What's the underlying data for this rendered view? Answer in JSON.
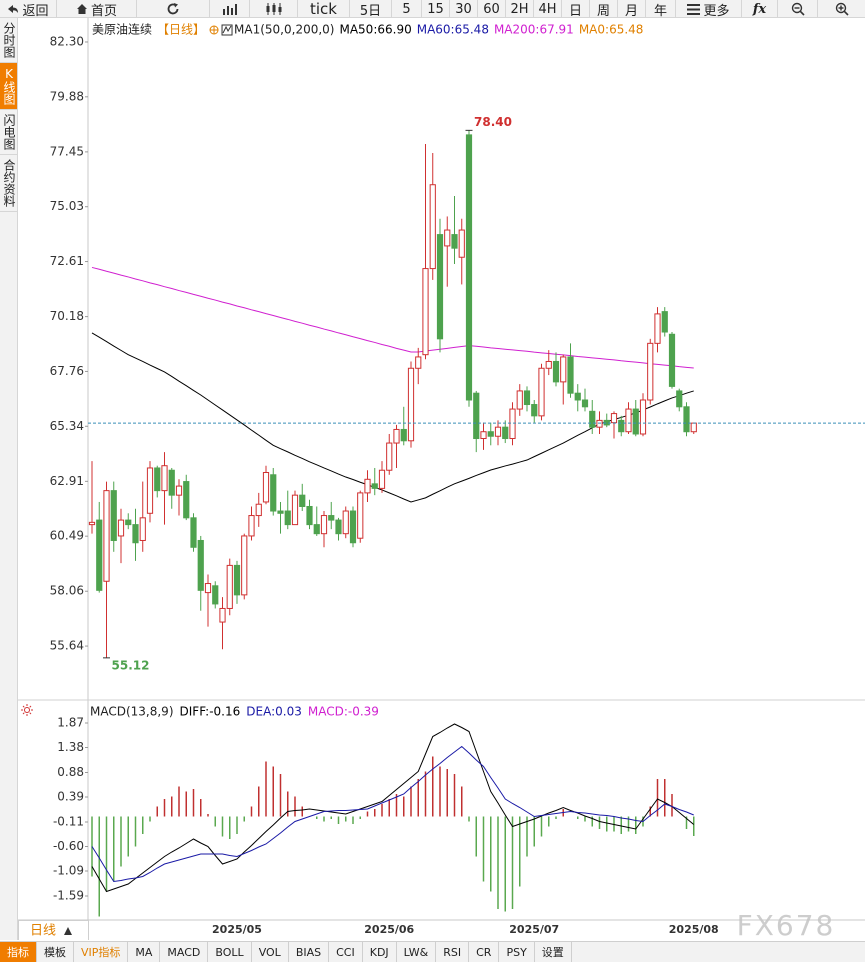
{
  "toolbar": {
    "back": "返回",
    "home": "首页",
    "tick": "tick",
    "periods": [
      "5日",
      "5",
      "15",
      "30",
      "60",
      "2H",
      "4H",
      "日",
      "周",
      "月",
      "年"
    ],
    "more": "更多",
    "fx": "fx"
  },
  "sidebar": {
    "items": [
      "分时图",
      "K线图",
      "闪电图",
      "合约资料"
    ],
    "active": 1
  },
  "period_tab": "日线",
  "bottom_tabs": {
    "items": [
      "指标",
      "模板",
      "VIP指标",
      "MA",
      "MACD",
      "BOLL",
      "VOL",
      "BIAS",
      "CCI",
      "KDJ",
      "LW&",
      "RSI",
      "CR",
      "PSY",
      "设置"
    ],
    "active": 0,
    "vip": 2
  },
  "watermark": "FX678",
  "chart_data": [
    {
      "type": "candlestick",
      "title": "美原油连续",
      "period": "【日线】",
      "indicator": "MA1(50,0,200,0)",
      "up_color": "#d03030",
      "down_color": "#4ea24e",
      "ylim": [
        53.26,
        83.27
      ],
      "yticks": [
        {
          "value": 82.3,
          "label": "82.30"
        },
        79.88,
        77.45,
        75.03,
        72.61,
        70.18,
        67.76,
        65.34,
        62.91,
        60.49,
        58.06,
        55.64
      ],
      "grid": false,
      "open": [
        61.0,
        61.2,
        58.5,
        62.5,
        60.5,
        61.2,
        61.0,
        60.3,
        61.5,
        63.5,
        62.5,
        63.4,
        62.3,
        62.9,
        61.3,
        60.3,
        58.0,
        58.3,
        56.7,
        57.3,
        59.2,
        57.9,
        60.5,
        61.4,
        62.0,
        63.2,
        61.6,
        61.6,
        61.0,
        62.3,
        61.8,
        61.0,
        60.6,
        61.4,
        61.2,
        60.6,
        61.6,
        60.4,
        62.4,
        62.8,
        62.6,
        63.4,
        64.6,
        65.2,
        64.7,
        67.9,
        68.5,
        72.3,
        73.8,
        73.3,
        73.8,
        72.8,
        78.2,
        66.8,
        64.8,
        65.1,
        64.9,
        65.3,
        64.8,
        66.1,
        66.9,
        66.3,
        65.8,
        67.9,
        68.2,
        67.3,
        68.4,
        66.8,
        66.5,
        66.0,
        65.3,
        65.6,
        65.5,
        65.6,
        65.1,
        66.1,
        65.0,
        66.5,
        69.0,
        70.4,
        69.4,
        66.9,
        66.2,
        65.1
      ],
      "high": [
        63.8,
        62.0,
        62.9,
        62.9,
        61.7,
        61.5,
        61.7,
        62.9,
        63.8,
        63.6,
        64.2,
        63.5,
        63.0,
        63.2,
        61.5,
        60.5,
        58.8,
        58.5,
        57.8,
        59.5,
        59.4,
        60.6,
        61.8,
        62.4,
        63.6,
        63.5,
        62.0,
        62.5,
        62.5,
        62.8,
        62.1,
        61.8,
        61.6,
        62.0,
        61.3,
        61.8,
        61.8,
        62.5,
        63.4,
        63.5,
        63.8,
        65.0,
        65.4,
        66.2,
        68.2,
        68.8,
        77.8,
        77.4,
        74.5,
        74.6,
        75.5,
        74.5,
        78.4,
        66.9,
        65.5,
        65.5,
        65.6,
        65.6,
        66.4,
        67.2,
        67.1,
        66.5,
        68.1,
        68.7,
        68.6,
        68.5,
        69.0,
        67.2,
        67.0,
        66.5,
        66.0,
        65.9,
        66.0,
        65.8,
        66.4,
        66.5,
        66.8,
        69.2,
        70.6,
        70.6,
        69.5,
        67.0,
        66.4,
        65.5
      ],
      "low": [
        60.6,
        58.0,
        55.12,
        59.8,
        59.3,
        60.8,
        59.4,
        59.8,
        61.1,
        62.2,
        61.0,
        61.7,
        61.4,
        61.2,
        59.8,
        57.2,
        56.5,
        57.3,
        55.5,
        57.0,
        57.5,
        57.7,
        60.3,
        60.9,
        61.9,
        61.4,
        60.6,
        60.8,
        61.0,
        61.6,
        60.8,
        60.5,
        60.0,
        60.8,
        60.3,
        60.4,
        60.0,
        60.2,
        62.0,
        62.3,
        62.4,
        63.2,
        63.5,
        64.5,
        64.4,
        67.2,
        68.3,
        71.8,
        68.6,
        71.5,
        72.5,
        71.6,
        66.2,
        64.2,
        64.3,
        64.5,
        64.5,
        64.6,
        64.5,
        65.8,
        66.0,
        65.5,
        65.6,
        67.6,
        67.1,
        66.3,
        66.6,
        66.0,
        66.0,
        65.0,
        65.0,
        65.3,
        64.8,
        64.9,
        65.0,
        64.9,
        64.9,
        66.3,
        68.6,
        69.3,
        67.0,
        66.0,
        64.9,
        65.0
      ],
      "close": [
        61.1,
        58.1,
        62.5,
        60.3,
        61.2,
        61.0,
        60.2,
        61.3,
        63.5,
        62.5,
        63.6,
        62.3,
        62.7,
        61.3,
        60.0,
        58.1,
        58.4,
        57.5,
        57.3,
        59.2,
        57.9,
        60.5,
        61.4,
        61.9,
        63.3,
        61.6,
        61.5,
        61.0,
        62.3,
        61.8,
        61.0,
        60.6,
        61.4,
        61.2,
        60.6,
        61.6,
        60.2,
        62.4,
        63.0,
        62.6,
        63.4,
        64.6,
        65.2,
        64.7,
        67.9,
        68.4,
        72.3,
        76.0,
        69.2,
        74.0,
        73.2,
        74.0,
        66.5,
        64.8,
        65.1,
        64.9,
        65.3,
        64.8,
        66.1,
        66.9,
        66.3,
        65.8,
        67.9,
        68.2,
        67.3,
        68.4,
        66.8,
        66.5,
        66.2,
        65.3,
        65.6,
        65.4,
        65.9,
        65.1,
        66.1,
        65.0,
        66.5,
        69.0,
        70.3,
        69.5,
        67.1,
        66.2,
        65.1,
        65.48
      ],
      "series": [
        {
          "name": "MA50:66.90",
          "color": "#000000",
          "values": [
            69.46,
            69.27,
            69.08,
            68.88,
            68.69,
            68.5,
            68.35,
            68.2,
            68.04,
            67.89,
            67.74,
            67.54,
            67.33,
            67.13,
            66.92,
            66.72,
            66.5,
            66.28,
            66.06,
            65.84,
            65.62,
            65.4,
            65.17,
            64.95,
            64.72,
            64.5,
            64.35,
            64.21,
            64.06,
            63.92,
            63.77,
            63.64,
            63.5,
            63.37,
            63.23,
            63.1,
            62.99,
            62.87,
            62.76,
            62.64,
            62.53,
            62.4,
            62.27,
            62.13,
            62.0,
            62.09,
            62.18,
            62.34,
            62.49,
            62.65,
            62.8,
            62.92,
            63.04,
            63.17,
            63.29,
            63.41,
            63.5,
            63.59,
            63.67,
            63.76,
            63.85,
            64.0,
            64.15,
            64.3,
            64.45,
            64.6,
            64.77,
            64.94,
            65.1,
            65.27,
            65.44,
            65.54,
            65.64,
            65.73,
            65.83,
            65.93,
            66.06,
            66.19,
            66.33,
            66.46,
            66.59,
            66.69,
            66.8,
            66.9
          ]
        },
        {
          "name": "MA200:67.91",
          "color": "#d020d0",
          "values": [
            72.35,
            72.27,
            72.18,
            72.1,
            72.01,
            71.93,
            71.84,
            71.76,
            71.67,
            71.59,
            71.5,
            71.42,
            71.33,
            71.25,
            71.16,
            71.08,
            70.99,
            70.91,
            70.82,
            70.74,
            70.65,
            70.57,
            70.48,
            70.4,
            70.31,
            70.23,
            70.14,
            70.06,
            69.97,
            69.89,
            69.8,
            69.72,
            69.63,
            69.55,
            69.46,
            69.38,
            69.29,
            69.21,
            69.12,
            69.04,
            68.95,
            68.87,
            68.78,
            68.7,
            68.62,
            68.62,
            68.66,
            68.7,
            68.74,
            68.78,
            68.82,
            68.86,
            68.9,
            68.87,
            68.84,
            68.8,
            68.77,
            68.74,
            68.71,
            68.68,
            68.65,
            68.61,
            68.58,
            68.55,
            68.52,
            68.49,
            68.46,
            68.42,
            68.39,
            68.36,
            68.33,
            68.3,
            68.27,
            68.23,
            68.2,
            68.17,
            68.14,
            68.1,
            68.07,
            68.04,
            68.01,
            67.97,
            67.94,
            67.91
          ]
        }
      ],
      "legend_extra": [
        {
          "text": "MA60:65.48",
          "color": "#1a1aa6"
        },
        {
          "text": "MA0:65.48",
          "color": "#e08000"
        }
      ],
      "annotations": [
        {
          "value": 78.4,
          "label": "78.40",
          "color": "#d03030"
        },
        {
          "value": 55.12,
          "label": "55.12",
          "color": "#4ea24e"
        }
      ],
      "last_price_color": "#3a8fb7"
    },
    {
      "type": "macd",
      "title": "MACD(13,8,9)",
      "categories": [
        null,
        null,
        null,
        null,
        null,
        null,
        null,
        null,
        null,
        null,
        null,
        null,
        null,
        null,
        null,
        null,
        null,
        null,
        null,
        null,
        "2025/05",
        null,
        null,
        null,
        null,
        null,
        null,
        null,
        null,
        null,
        null,
        null,
        null,
        null,
        null,
        null,
        null,
        null,
        null,
        null,
        null,
        "2025/06",
        null,
        null,
        null,
        null,
        null,
        null,
        null,
        null,
        null,
        null,
        null,
        null,
        null,
        null,
        null,
        null,
        null,
        null,
        null,
        "2025/07",
        null,
        null,
        null,
        null,
        null,
        null,
        null,
        null,
        null,
        null,
        null,
        null,
        null,
        null,
        null,
        null,
        null,
        null,
        null,
        null,
        null,
        "2025/08"
      ],
      "ylim": [
        -2.07,
        2.23
      ],
      "yticks": [
        1.87,
        1.38,
        0.88,
        0.39,
        -0.11,
        {
          "value": -0.6,
          "label": "-0.60"
        },
        -1.09,
        -1.59
      ],
      "series": [
        {
          "name": "DIFF:-0.16",
          "color": "#000000",
          "values": [
            -1.0,
            -1.25,
            -1.5,
            -1.45,
            -1.4,
            -1.35,
            -1.24,
            -1.13,
            -1.02,
            -0.91,
            -0.8,
            -0.71,
            -0.63,
            -0.54,
            -0.45,
            -0.53,
            -0.6,
            -0.78,
            -0.95,
            -0.9,
            -0.85,
            -0.71,
            -0.58,
            -0.44,
            -0.3,
            -0.17,
            -0.03,
            0.1,
            0.12,
            0.13,
            0.15,
            0.13,
            0.11,
            0.09,
            0.07,
            0.05,
            0.1,
            0.15,
            0.2,
            0.25,
            0.3,
            0.42,
            0.54,
            0.66,
            0.78,
            0.9,
            1.25,
            1.6,
            1.68,
            1.77,
            1.85,
            1.78,
            1.7,
            1.3,
            0.9,
            0.5,
            0.27,
            0.03,
            -0.2,
            -0.15,
            -0.1,
            -0.05,
            0.01,
            0.07,
            0.12,
            0.18,
            0.12,
            0.07,
            0.01,
            -0.04,
            -0.1,
            -0.13,
            -0.16,
            -0.19,
            -0.22,
            -0.25,
            -0.05,
            0.15,
            0.35,
            0.28,
            0.2,
            0.08,
            -0.04,
            -0.16
          ]
        },
        {
          "name": "DEA:0.03",
          "color": "#1a1aa6",
          "values": [
            -0.6,
            -0.83,
            -1.07,
            -1.3,
            -1.28,
            -1.25,
            -1.23,
            -1.2,
            -1.12,
            -1.03,
            -0.95,
            -0.91,
            -0.87,
            -0.83,
            -0.79,
            -0.75,
            -0.75,
            -0.75,
            -0.75,
            -0.78,
            -0.8,
            -0.74,
            -0.68,
            -0.61,
            -0.55,
            -0.44,
            -0.33,
            -0.21,
            -0.1,
            -0.05,
            0.0,
            0.05,
            0.1,
            0.11,
            0.12,
            0.12,
            0.13,
            0.14,
            0.15,
            0.21,
            0.27,
            0.33,
            0.39,
            0.45,
            0.58,
            0.7,
            0.83,
            0.95,
            1.06,
            1.18,
            1.29,
            1.4,
            1.27,
            1.13,
            1.0,
            0.78,
            0.57,
            0.35,
            0.26,
            0.18,
            0.09,
            0.0,
            0.02,
            0.04,
            0.06,
            0.08,
            0.1,
            0.08,
            0.07,
            0.05,
            0.03,
            0.02,
            0.0,
            -0.03,
            -0.05,
            -0.08,
            -0.1,
            0.02,
            0.13,
            0.25,
            0.2,
            0.14,
            0.09,
            0.03
          ]
        },
        {
          "name": "MACD:-0.39",
          "color": "#d020d0",
          "type": "histogram",
          "up_color": "#c03030",
          "down_color": "#5aa84f",
          "values": [
            -1.2,
            -2.0,
            -1.5,
            -1.3,
            -1.0,
            -0.8,
            -0.6,
            -0.35,
            -0.1,
            0.2,
            0.35,
            0.4,
            0.6,
            0.5,
            0.55,
            0.35,
            0.05,
            -0.2,
            -0.4,
            -0.45,
            -0.35,
            -0.1,
            0.2,
            0.6,
            1.1,
            1.0,
            0.85,
            0.5,
            0.4,
            0.2,
            0.0,
            -0.05,
            -0.1,
            -0.05,
            -0.15,
            -0.1,
            -0.15,
            -0.05,
            0.1,
            0.15,
            0.25,
            0.35,
            0.45,
            0.4,
            0.6,
            0.75,
            0.9,
            1.2,
            1.0,
            0.95,
            0.85,
            0.6,
            -0.1,
            -0.8,
            -1.3,
            -1.5,
            -1.85,
            -1.9,
            -1.85,
            -1.4,
            -0.8,
            -0.6,
            -0.4,
            -0.2,
            -0.05,
            0.15,
            0.0,
            -0.05,
            -0.1,
            -0.2,
            -0.25,
            -0.3,
            -0.3,
            -0.35,
            -0.3,
            -0.35,
            -0.2,
            0.2,
            0.75,
            0.75,
            0.45,
            0.0,
            -0.25,
            -0.39
          ]
        }
      ]
    }
  ]
}
